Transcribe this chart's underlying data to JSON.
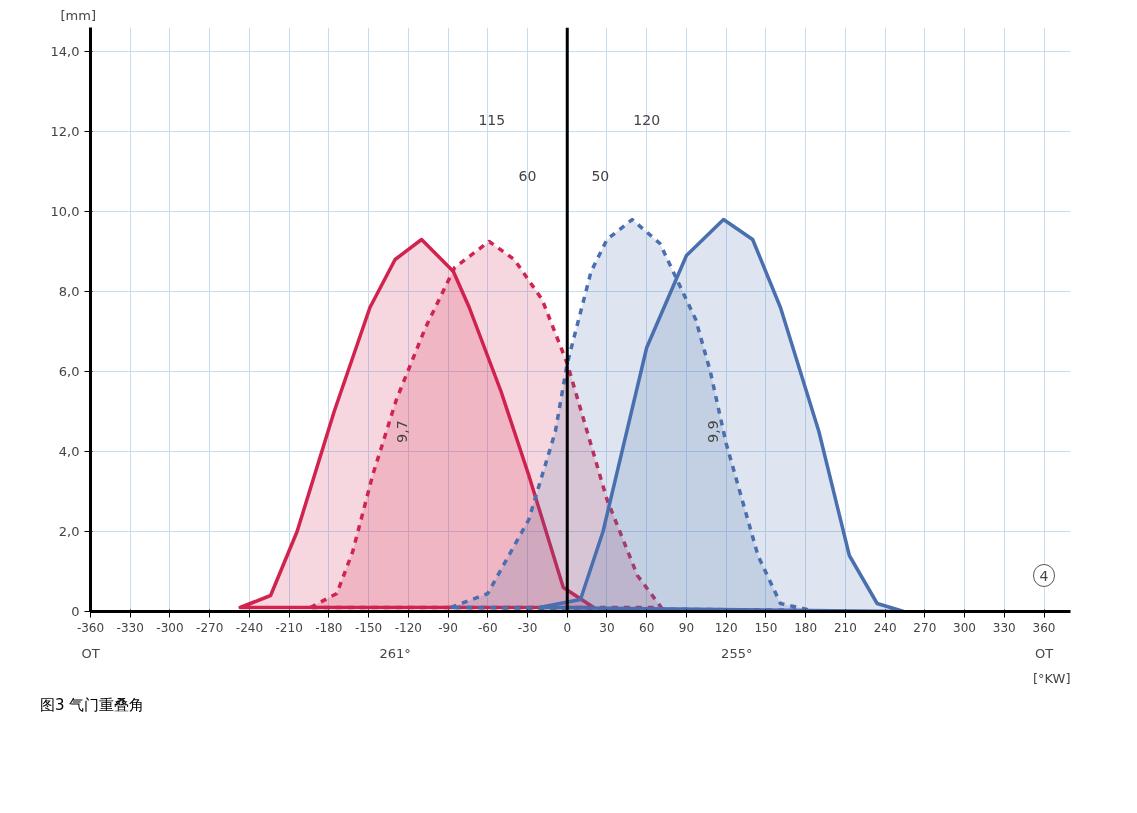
{
  "chart_data": {
    "type": "area",
    "xlabel": "[°KW]",
    "ylabel": "[mm]",
    "xlim": [
      -360,
      380
    ],
    "ylim": [
      0,
      14.6
    ],
    "xticks": [
      -360,
      -330,
      -300,
      -270,
      -240,
      -210,
      -180,
      -150,
      -120,
      -90,
      -60,
      -30,
      0,
      30,
      60,
      90,
      120,
      150,
      180,
      210,
      240,
      270,
      300,
      330,
      360
    ],
    "yticks": [
      0,
      {
        "value": 2,
        "label": "2,0"
      },
      {
        "value": 4,
        "label": "4,0"
      },
      {
        "value": 6,
        "label": "6,0"
      },
      {
        "value": 8,
        "label": "8,0"
      },
      {
        "value": 10,
        "label": "10,0"
      },
      {
        "value": 12,
        "label": "12,0"
      },
      {
        "value": 14,
        "label": "14,0"
      }
    ],
    "grid": true,
    "series": [
      {
        "color": "#d0234f",
        "line_style": "solid",
        "x": [
          -247,
          -224,
          -204,
          -176,
          -149,
          -130,
          -110,
          -86,
          -74,
          -50,
          -29,
          -3,
          20
        ],
        "values": [
          0.1,
          0.4,
          2.0,
          5.0,
          7.6,
          8.8,
          9.3,
          8.5,
          7.6,
          5.5,
          3.4,
          0.6,
          0.1
        ]
      },
      {
        "color": "#d0234f",
        "line_style": "dashed",
        "x": [
          -194,
          -174,
          -162,
          -147,
          -129,
          -107,
          -85,
          -59,
          -40,
          -19,
          0,
          30,
          53,
          71
        ],
        "values": [
          0.1,
          0.45,
          1.5,
          3.4,
          5.3,
          7.1,
          8.6,
          9.25,
          8.8,
          7.8,
          6.2,
          2.8,
          0.9,
          0.1
        ]
      },
      {
        "color": "#4a6fae",
        "line_style": "dashed",
        "x": [
          -88,
          -60,
          -29,
          -9,
          0,
          18,
          30,
          49,
          70,
          97,
          108,
          120,
          144,
          161,
          184
        ],
        "values": [
          0.1,
          0.45,
          2.3,
          4.5,
          6.2,
          8.5,
          9.3,
          9.8,
          9.2,
          7.3,
          6.0,
          4.2,
          1.4,
          0.2,
          0.03
        ]
      },
      {
        "color": "#4a6fae",
        "line_style": "solid",
        "x": [
          -21,
          10,
          27,
          60,
          90,
          118,
          140,
          161,
          190,
          213,
          234,
          254
        ],
        "values": [
          0.1,
          0.3,
          2.0,
          6.6,
          8.9,
          9.8,
          9.3,
          7.6,
          4.5,
          1.4,
          0.2,
          0
        ]
      }
    ],
    "ref_lines": [
      {
        "axis": "x",
        "value": 0,
        "label": null,
        "color": "#000000"
      }
    ],
    "annotations": [
      "115",
      "60",
      "50",
      "120",
      "9,7",
      "9,9",
      "4",
      "OT",
      "OT",
      "261°",
      "255°",
      "图3  气门重叠角"
    ]
  }
}
